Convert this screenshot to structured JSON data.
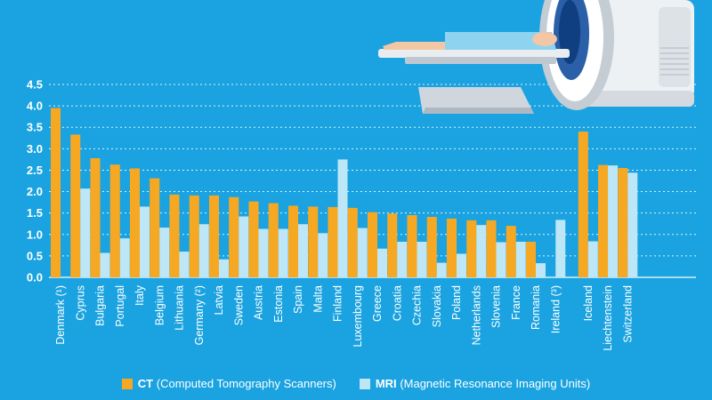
{
  "colors": {
    "background": "#1aa3e0",
    "ct": "#f7a823",
    "mri": "#bde6f7",
    "grid": "#ffffff",
    "text": "#ffffff"
  },
  "legend": {
    "ct_abbr": "CT",
    "ct_desc": "(Computed Tomography Scanners)",
    "mri_abbr": "MRI",
    "mri_desc": "(Magnetic Resonance Imaging Units)"
  },
  "illustration": {
    "icon": "ct-scanner-with-patient-illustration"
  },
  "chart_data": {
    "type": "bar",
    "ylim": [
      0,
      4.5
    ],
    "yticks": [
      "0.0",
      "0.5",
      "1.0",
      "1.5",
      "2.0",
      "2.5",
      "3.0",
      "3.5",
      "4.0",
      "4.5"
    ],
    "grid": true,
    "legend_position": "bottom-center",
    "categories": [
      "Denmark (¹)",
      "Cyprus",
      "Bulgaria",
      "Portugal",
      "Italy",
      "Belgium",
      "Lithuania",
      "Germany (²)",
      "Latvia",
      "Sweden",
      "Austria",
      "Estonia",
      "Spain",
      "Malta",
      "Finland",
      "Luxembourg",
      "Greece",
      "Croatia",
      "Czechia",
      "Slovakia",
      "Poland",
      "Netherlands",
      "Slovenia",
      "France",
      "Romania",
      "Ireland (³)",
      "Iceland",
      "Liechtenstein",
      "Switzerland"
    ],
    "series": [
      {
        "name": "CT",
        "values": [
          3.95,
          3.33,
          2.78,
          2.63,
          2.54,
          2.31,
          1.93,
          1.91,
          1.91,
          1.87,
          1.77,
          1.73,
          1.67,
          1.65,
          1.64,
          1.62,
          1.52,
          1.49,
          1.45,
          1.41,
          1.37,
          1.33,
          1.33,
          1.2,
          0.83,
          null,
          3.4,
          2.62,
          2.55
        ]
      },
      {
        "name": "MRI",
        "values": [
          null,
          2.07,
          0.57,
          0.91,
          1.65,
          1.16,
          0.6,
          1.24,
          0.42,
          1.42,
          1.13,
          1.13,
          1.24,
          1.03,
          2.75,
          1.15,
          0.67,
          0.83,
          0.83,
          0.34,
          0.55,
          1.22,
          0.82,
          0.83,
          0.33,
          1.34,
          0.84,
          2.61,
          2.44
        ]
      }
    ]
  }
}
